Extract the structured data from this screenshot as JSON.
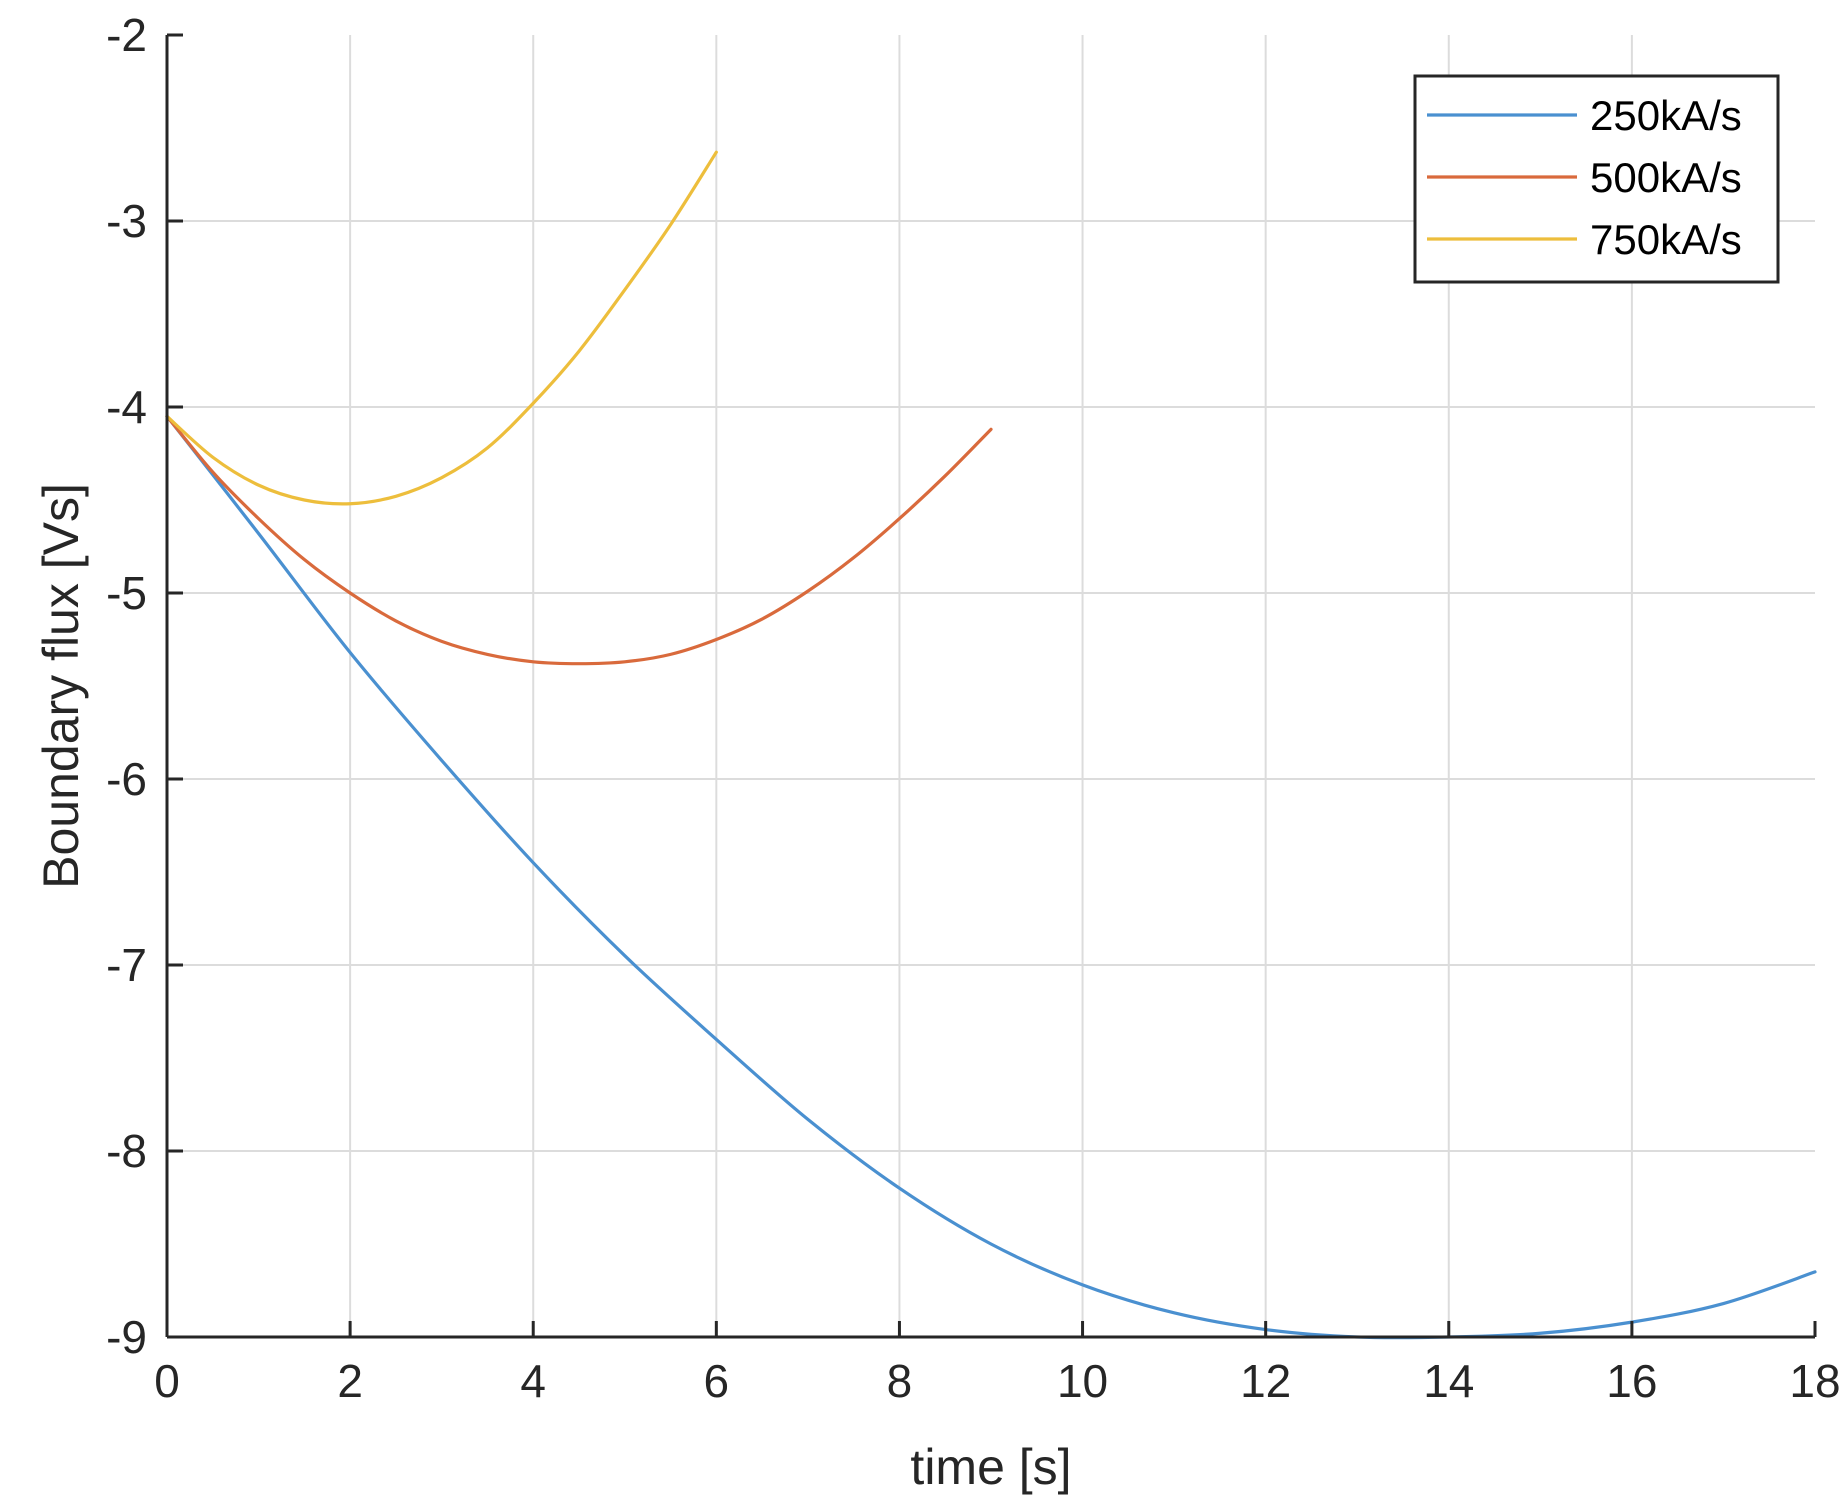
{
  "chart_data": {
    "type": "line",
    "xlabel": "time [s]",
    "ylabel": "Boundary flux [Vs]",
    "xlim": [
      0,
      18
    ],
    "ylim": [
      -9,
      -2
    ],
    "xticks": [
      0,
      2,
      4,
      6,
      8,
      10,
      12,
      14,
      16,
      18
    ],
    "yticks": [
      -2,
      -3,
      -4,
      -5,
      -6,
      -7,
      -8,
      -9
    ],
    "xtick_labels": [
      "0",
      "2",
      "4",
      "6",
      "8",
      "10",
      "12",
      "14",
      "16",
      "18"
    ],
    "ytick_labels": [
      "-2",
      "-3",
      "-4",
      "-5",
      "-6",
      "-7",
      "-8",
      "-9"
    ],
    "grid": true,
    "legend_position": "top-right",
    "series": [
      {
        "name": "250kA/s",
        "color": "#4A90D0",
        "x": [
          0,
          1,
          2,
          3,
          4,
          5,
          6,
          7,
          8,
          9,
          10,
          11,
          12,
          13,
          14,
          15,
          16,
          17,
          18
        ],
        "y": [
          -4.05,
          -4.68,
          -5.32,
          -5.9,
          -6.45,
          -6.95,
          -7.4,
          -7.83,
          -8.2,
          -8.5,
          -8.72,
          -8.87,
          -8.96,
          -9.0,
          -9.0,
          -8.98,
          -8.92,
          -8.82,
          -8.65
        ]
      },
      {
        "name": "500kA/s",
        "color": "#D96A3C",
        "x": [
          0,
          0.5,
          1,
          1.5,
          2,
          2.5,
          3,
          3.5,
          4,
          4.5,
          5,
          5.5,
          6,
          6.5,
          7,
          7.5,
          8,
          8.5,
          9
        ],
        "y": [
          -4.05,
          -4.35,
          -4.6,
          -4.82,
          -5.0,
          -5.15,
          -5.26,
          -5.33,
          -5.37,
          -5.38,
          -5.37,
          -5.33,
          -5.25,
          -5.14,
          -4.99,
          -4.81,
          -4.6,
          -4.37,
          -4.12
        ]
      },
      {
        "name": "750kA/s",
        "color": "#EDBE3C",
        "x": [
          0,
          0.5,
          1,
          1.5,
          2,
          2.5,
          3,
          3.5,
          4,
          4.5,
          5,
          5.5,
          6
        ],
        "y": [
          -4.05,
          -4.27,
          -4.42,
          -4.5,
          -4.52,
          -4.48,
          -4.38,
          -4.22,
          -3.98,
          -3.7,
          -3.37,
          -3.02,
          -2.63
        ]
      }
    ]
  }
}
